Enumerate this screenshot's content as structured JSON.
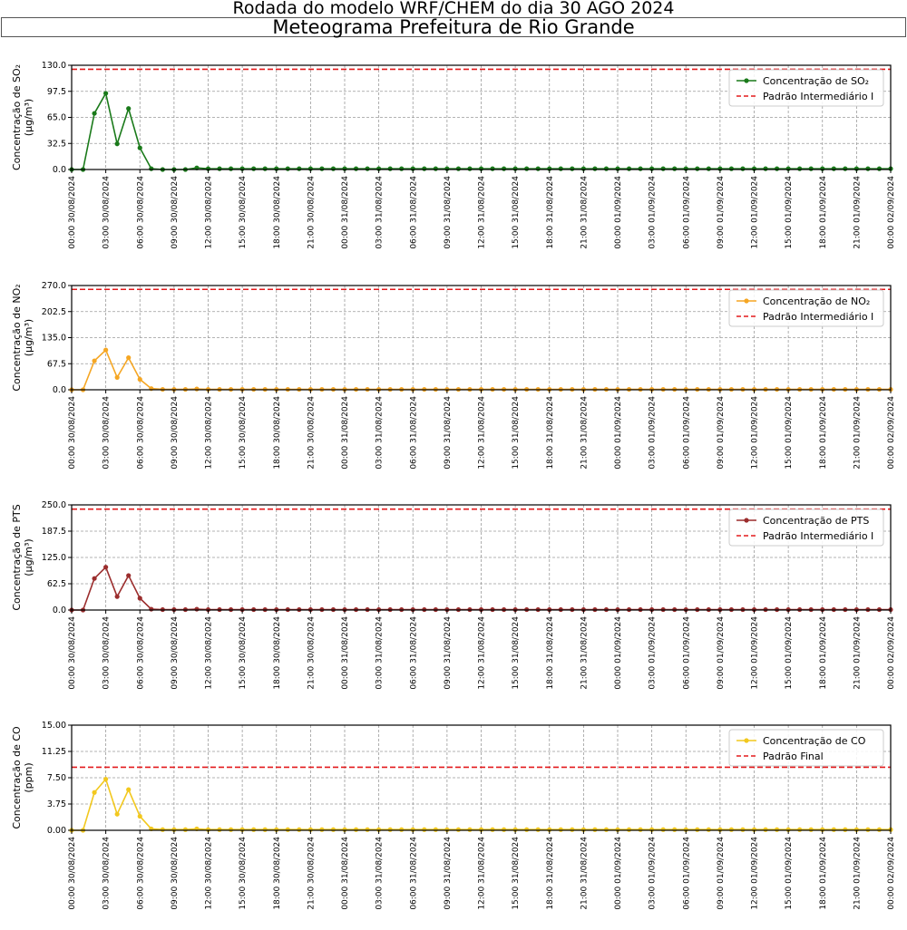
{
  "suptitle": "Rodada do modelo WRF/CHEM do dia 30 AGO 2024",
  "title": "Meteograma Prefeitura de Rio Grande",
  "chart_data": [
    {
      "type": "line",
      "ylabel_lines": [
        "Concentração de SO₂",
        "(μg/m³)"
      ],
      "ylim": [
        0,
        130
      ],
      "yticks": [
        "0.0",
        "32.5",
        "65.0",
        "97.5",
        "130.0"
      ],
      "grid": true,
      "legend_position": "top-right",
      "color": "#1a7a1a",
      "series": [
        {
          "name": "Concentração de SO₂",
          "values": [
            0,
            0,
            70,
            95,
            32,
            76,
            27,
            1,
            0,
            0,
            0,
            2,
            1,
            1,
            1,
            1,
            1,
            1,
            1,
            1,
            1,
            1,
            1,
            1,
            1,
            1,
            1,
            1,
            1,
            1,
            1,
            1,
            1,
            1,
            1,
            1,
            1,
            1,
            1,
            1,
            1,
            1,
            1,
            1,
            1,
            1,
            1,
            1,
            1,
            1,
            1,
            1,
            1,
            1,
            1,
            1,
            1,
            1,
            1,
            1,
            1,
            1,
            1,
            1,
            1,
            1,
            1,
            1,
            1,
            1,
            1,
            1,
            1
          ]
        }
      ],
      "threshold": {
        "name": "Padrão Intermediário I",
        "value": 125,
        "color": "#e41a1c"
      }
    },
    {
      "type": "line",
      "ylabel_lines": [
        "Concentração de NO₂",
        "(μg/m³)"
      ],
      "ylim": [
        0,
        270
      ],
      "yticks": [
        "0.0",
        "67.5",
        "135.0",
        "202.5",
        "270.0"
      ],
      "grid": true,
      "legend_position": "top-right",
      "color": "#f5a623",
      "series": [
        {
          "name": "Concentração de NO₂",
          "values": [
            0,
            0,
            75,
            103,
            32,
            83,
            27,
            3,
            1,
            1,
            1,
            2,
            1,
            1,
            1,
            1,
            1,
            1,
            1,
            1,
            1,
            1,
            1,
            1,
            1,
            1,
            1,
            1,
            1,
            1,
            1,
            1,
            1,
            1,
            1,
            1,
            1,
            1,
            1,
            1,
            1,
            1,
            1,
            1,
            1,
            1,
            1,
            1,
            1,
            1,
            1,
            1,
            1,
            1,
            1,
            1,
            1,
            1,
            1,
            1,
            1,
            1,
            1,
            1,
            1,
            1,
            1,
            1,
            1,
            1,
            1,
            1,
            1
          ]
        }
      ],
      "threshold": {
        "name": "Padrão Intermediário I",
        "value": 260,
        "color": "#e41a1c"
      }
    },
    {
      "type": "line",
      "ylabel_lines": [
        "Concentração de PTS",
        "(μg/m³)"
      ],
      "ylim": [
        0,
        250
      ],
      "yticks": [
        "0.0",
        "62.5",
        "125.0",
        "187.5",
        "250.0"
      ],
      "grid": true,
      "legend_position": "top-right",
      "color": "#9b2d2d",
      "series": [
        {
          "name": "Concentração de PTS",
          "values": [
            0,
            0,
            75,
            102,
            32,
            82,
            28,
            2,
            1,
            1,
            1,
            2,
            1,
            1,
            1,
            1,
            1,
            1,
            1,
            1,
            1,
            1,
            1,
            1,
            1,
            1,
            1,
            1,
            1,
            1,
            1,
            1,
            1,
            1,
            1,
            1,
            1,
            1,
            1,
            1,
            1,
            1,
            1,
            1,
            1,
            1,
            1,
            1,
            1,
            1,
            1,
            1,
            1,
            1,
            1,
            1,
            1,
            1,
            1,
            1,
            1,
            1,
            1,
            1,
            1,
            1,
            1,
            1,
            1,
            1,
            1,
            1,
            1
          ]
        }
      ],
      "threshold": {
        "name": "Padrão Intermediário I",
        "value": 240,
        "color": "#e41a1c"
      }
    },
    {
      "type": "line",
      "ylabel_lines": [
        "Concentração de CO",
        "(ppm)"
      ],
      "ylim": [
        0,
        15
      ],
      "yticks": [
        "0.00",
        "3.75",
        "7.50",
        "11.25",
        "15.00"
      ],
      "grid": true,
      "legend_position": "top-right",
      "color": "#f2c81e",
      "series": [
        {
          "name": "Concentração de CO",
          "values": [
            0,
            0,
            5.4,
            7.3,
            2.3,
            5.8,
            2.0,
            0.2,
            0.1,
            0.1,
            0.1,
            0.2,
            0.1,
            0.1,
            0.1,
            0.1,
            0.1,
            0.1,
            0.1,
            0.1,
            0.1,
            0.1,
            0.1,
            0.1,
            0.1,
            0.1,
            0.1,
            0.1,
            0.1,
            0.1,
            0.1,
            0.1,
            0.1,
            0.1,
            0.1,
            0.1,
            0.1,
            0.1,
            0.1,
            0.1,
            0.1,
            0.1,
            0.1,
            0.1,
            0.1,
            0.1,
            0.1,
            0.1,
            0.1,
            0.1,
            0.1,
            0.1,
            0.1,
            0.1,
            0.1,
            0.1,
            0.1,
            0.1,
            0.1,
            0.1,
            0.1,
            0.1,
            0.1,
            0.1,
            0.1,
            0.1,
            0.1,
            0.1,
            0.1,
            0.1,
            0.1,
            0.1,
            0.1
          ]
        }
      ],
      "threshold": {
        "name": "Padrão Final",
        "value": 9,
        "color": "#e41a1c"
      }
    }
  ],
  "xticks": [
    "00:00 30/08/2024",
    "03:00 30/08/2024",
    "06:00 30/08/2024",
    "09:00 30/08/2024",
    "12:00 30/08/2024",
    "15:00 30/08/2024",
    "18:00 30/08/2024",
    "21:00 30/08/2024",
    "00:00 31/08/2024",
    "03:00 31/08/2024",
    "06:00 31/08/2024",
    "09:00 31/08/2024",
    "12:00 31/08/2024",
    "15:00 31/08/2024",
    "18:00 31/08/2024",
    "21:00 31/08/2024",
    "00:00 01/09/2024",
    "03:00 01/09/2024",
    "06:00 01/09/2024",
    "09:00 01/09/2024",
    "12:00 01/09/2024",
    "15:00 01/09/2024",
    "18:00 01/09/2024",
    "21:00 01/09/2024",
    "00:00 02/09/2024"
  ]
}
